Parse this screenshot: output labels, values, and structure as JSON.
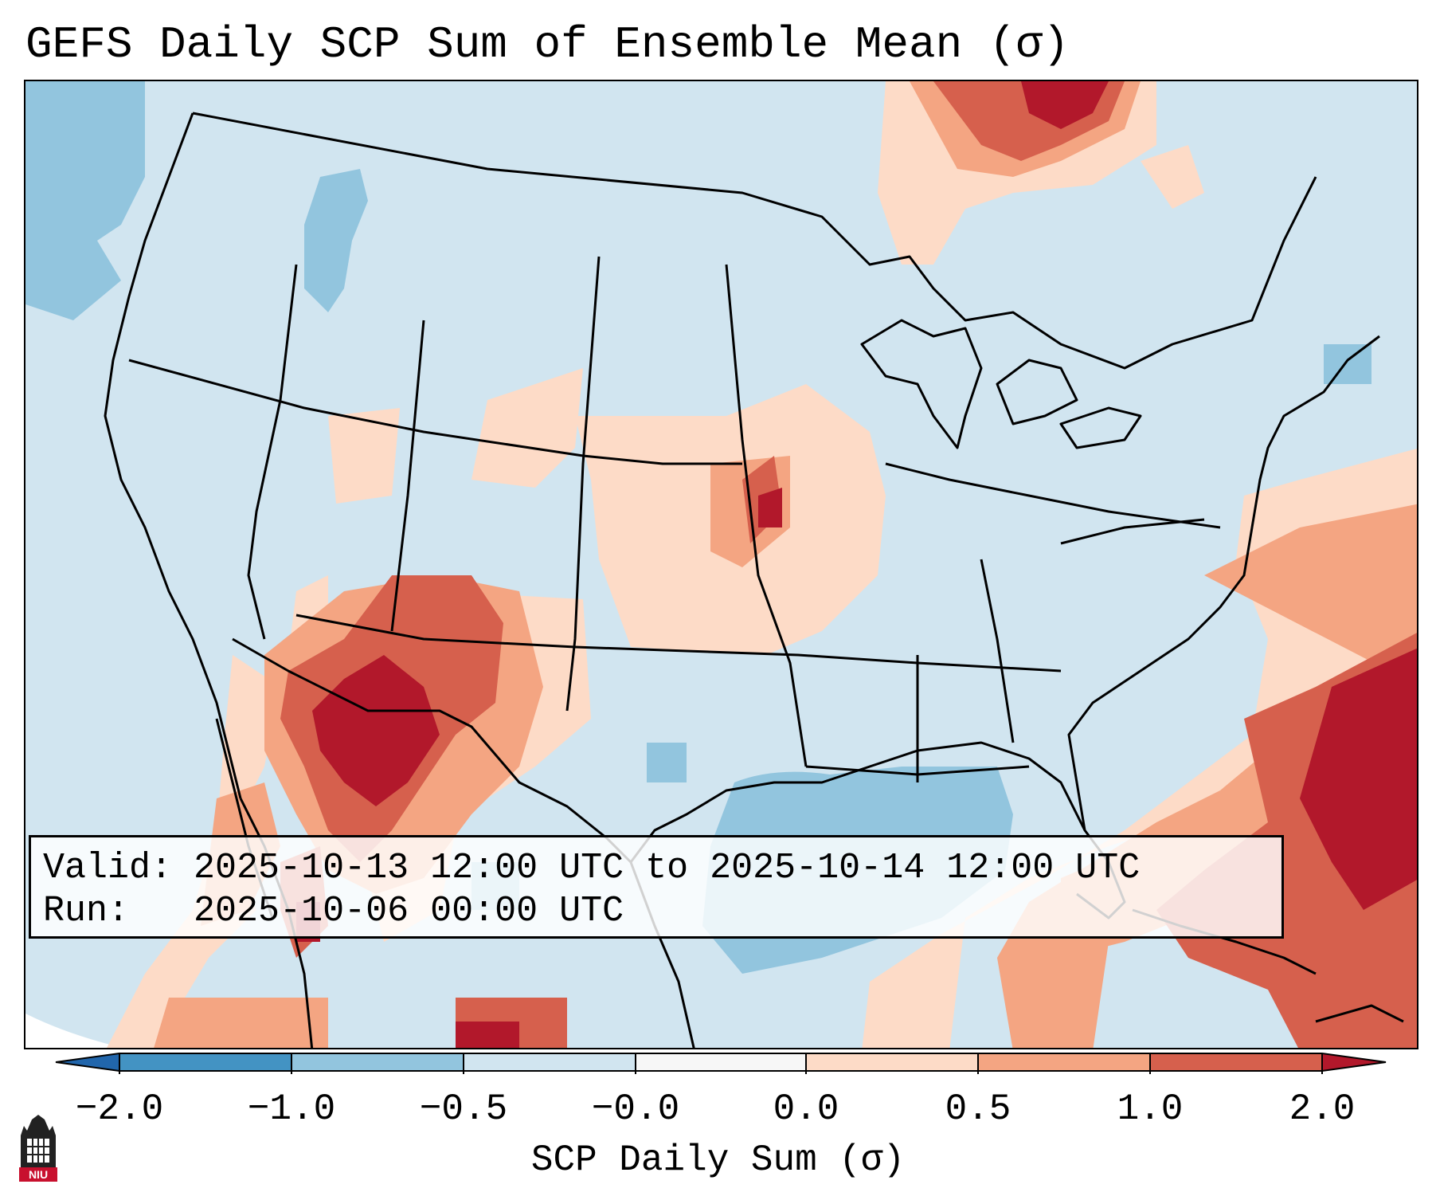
{
  "title": "GEFS Daily SCP Sum of Ensemble Mean (σ)",
  "info": {
    "valid_label": "Valid:",
    "valid_value": "2025-10-13 12:00 UTC to 2025-10-14 12:00 UTC",
    "run_label": "Run:",
    "run_value": "2025-10-06 00:00 UTC"
  },
  "colorbar": {
    "label": "SCP Daily Sum (σ)",
    "ticks": [
      "−2.0",
      "−1.0",
      "−0.5",
      "−0.0",
      "0.0",
      "0.5",
      "1.0",
      "2.0"
    ],
    "bins": [
      {
        "range": "< -2.0",
        "color": "#2166ac"
      },
      {
        "range": "-2.0 to -1.0",
        "color": "#4393c3"
      },
      {
        "range": "-1.0 to -0.5",
        "color": "#92c5de"
      },
      {
        "range": "-0.5 to -0.0",
        "color": "#d1e5f0"
      },
      {
        "range": "-0.0 to 0.0",
        "color": "#f7f7f7"
      },
      {
        "range": "0.0 to 0.5",
        "color": "#fddbc7"
      },
      {
        "range": "0.5 to 1.0",
        "color": "#f4a582"
      },
      {
        "range": "1.0 to 2.0",
        "color": "#d6604d"
      },
      {
        "range": "> 2.0",
        "color": "#b2182b"
      }
    ]
  },
  "logo": {
    "text": "NIU"
  }
}
